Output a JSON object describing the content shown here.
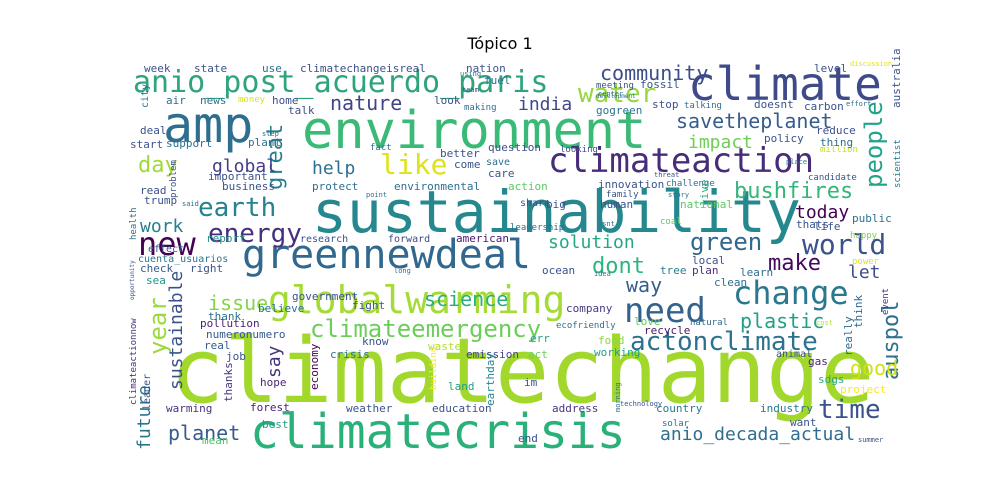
{
  "title": "Tópico 1",
  "words": [
    {
      "t": "climatechange",
      "c": "#a2d82c"
    },
    {
      "t": "sustainability",
      "c": "#25888e"
    },
    {
      "t": "climatecrisis",
      "c": "#2ab17a"
    },
    {
      "t": "environment",
      "c": "#3aba76"
    },
    {
      "t": "globalwarming",
      "c": "#a5db36"
    },
    {
      "t": "climate",
      "c": "#3e4a89"
    },
    {
      "t": "greennewdeal",
      "c": "#31688e"
    },
    {
      "t": "climateaction",
      "c": "#472c7a"
    },
    {
      "t": "amp",
      "c": "#2d6f8e"
    },
    {
      "t": "anio_post_acuerdo_paris",
      "c": "#2ea47c"
    },
    {
      "t": "need",
      "c": "#33628d"
    },
    {
      "t": "change",
      "c": "#2a788e"
    },
    {
      "t": "new",
      "c": "#440154"
    },
    {
      "t": "world",
      "c": "#3b528b"
    },
    {
      "t": "like",
      "c": "#dde318"
    },
    {
      "t": "earth",
      "c": "#26828e"
    },
    {
      "t": "energy",
      "c": "#46307e"
    },
    {
      "t": "actonclimate",
      "c": "#2c728e"
    },
    {
      "t": "climateemergency",
      "c": "#6ccd5a"
    },
    {
      "t": "water",
      "c": "#95d840"
    },
    {
      "t": "people",
      "c": "#20a386"
    },
    {
      "t": "time",
      "c": "#3b528b"
    },
    {
      "t": "year",
      "c": "#9bd93c"
    },
    {
      "t": "great",
      "c": "#277f8e"
    },
    {
      "t": "day",
      "c": "#a0da39"
    },
    {
      "t": "savetheplanet",
      "c": "#365c8d"
    },
    {
      "t": "community",
      "c": "#3d4d8a"
    },
    {
      "t": "nature",
      "c": "#414487"
    },
    {
      "t": "india",
      "c": "#3f4889"
    },
    {
      "t": "impact",
      "c": "#6ece58"
    },
    {
      "t": "global",
      "c": "#433e85"
    },
    {
      "t": "help",
      "c": "#2d708e"
    },
    {
      "t": "bushfires",
      "c": "#32b67a"
    },
    {
      "t": "work",
      "c": "#287d8e"
    },
    {
      "t": "solution",
      "c": "#22a884"
    },
    {
      "t": "green",
      "c": "#31688e"
    },
    {
      "t": "today",
      "c": "#440154"
    },
    {
      "t": "dont",
      "c": "#2fb47c"
    },
    {
      "t": "make",
      "c": "#46085c"
    },
    {
      "t": "way",
      "c": "#365d8d"
    },
    {
      "t": "let",
      "c": "#3c4f8a"
    },
    {
      "t": "science",
      "c": "#29af7f"
    },
    {
      "t": "sustainable",
      "c": "#3b518b"
    },
    {
      "t": "issue",
      "c": "#86d549"
    },
    {
      "t": "plastic",
      "c": "#1fa188"
    },
    {
      "t": "auspol",
      "c": "#2c718e"
    },
    {
      "t": "good",
      "c": "#d0e11c"
    },
    {
      "t": "future",
      "c": "#2c738e"
    },
    {
      "t": "say",
      "c": "#46337f"
    },
    {
      "t": "planet",
      "c": "#365c8d"
    },
    {
      "t": "anio_decada_actual",
      "c": "#2e6e8e"
    },
    {
      "t": "crisis",
      "c": "#2c728e"
    },
    {
      "t": "waste",
      "c": "#b5de2b"
    },
    {
      "t": "emission",
      "c": "#404588"
    },
    {
      "t": "act",
      "c": "#6ccd5a"
    },
    {
      "t": "food",
      "c": "#90d743"
    },
    {
      "t": "gas",
      "c": "#482677"
    },
    {
      "t": "sdgs",
      "c": "#22a785"
    },
    {
      "t": "project",
      "c": "#fde725"
    },
    {
      "t": "weather",
      "c": "#39568c"
    },
    {
      "t": "education",
      "c": "#3b518b"
    },
    {
      "t": "address",
      "c": "#453781"
    },
    {
      "t": "country",
      "c": "#29798e"
    },
    {
      "t": "industry",
      "c": "#2a768e"
    },
    {
      "t": "want",
      "c": "#3b528b"
    },
    {
      "t": "best",
      "c": "#1e9b8a"
    },
    {
      "t": "end",
      "c": "#3b528b"
    },
    {
      "t": "solar",
      "c": "#2d708e"
    },
    {
      "t": "forest",
      "c": "#482475"
    },
    {
      "t": "hope",
      "c": "#482878"
    },
    {
      "t": "job",
      "c": "#3b528b"
    },
    {
      "t": "thanks",
      "c": "#46327e"
    },
    {
      "t": "leader",
      "c": "#3b528b"
    },
    {
      "t": "warming",
      "c": "#46327e"
    },
    {
      "t": "mean",
      "c": "#4ac16d"
    },
    {
      "t": "economy",
      "c": "#440154"
    },
    {
      "t": "building",
      "c": "#fde725"
    },
    {
      "t": "land",
      "c": "#1f9e89"
    },
    {
      "t": "im",
      "c": "#3b528b"
    },
    {
      "t": "earthday",
      "c": "#25838e"
    },
    {
      "t": "know",
      "c": "#39558c"
    },
    {
      "t": "err",
      "c": "#20a386"
    },
    {
      "t": "working",
      "c": "#1fa187"
    },
    {
      "t": "animal",
      "c": "#3b528b"
    },
    {
      "t": "recycle",
      "c": "#481769"
    },
    {
      "t": "real",
      "c": "#365c8d"
    },
    {
      "t": "pollution",
      "c": "#481f70"
    },
    {
      "t": "numeronumero",
      "c": "#38598c"
    },
    {
      "t": "thank",
      "c": "#2d708e"
    },
    {
      "t": "fight",
      "c": "#3b528b"
    },
    {
      "t": "company",
      "c": "#443b84"
    },
    {
      "t": "love",
      "c": "#63cb5f"
    },
    {
      "t": "natural",
      "c": "#31688e"
    },
    {
      "t": "ecofriendly",
      "c": "#2d708e"
    },
    {
      "t": "think",
      "c": "#31688e"
    },
    {
      "t": "really",
      "c": "#31688e"
    },
    {
      "t": "cost",
      "c": "#b8de29"
    },
    {
      "t": "event",
      "c": "#453581"
    },
    {
      "t": "believe",
      "c": "#2d708e"
    },
    {
      "t": "government",
      "c": "#3b528b"
    },
    {
      "t": "sea",
      "c": "#20928c"
    },
    {
      "t": "check",
      "c": "#365c8d"
    },
    {
      "t": "right",
      "c": "#3b528b"
    },
    {
      "t": "cuenta_usuarios",
      "c": "#2a788e"
    },
    {
      "t": "report",
      "c": "#1f968b"
    },
    {
      "t": "effect",
      "c": "#39568c"
    },
    {
      "t": "health",
      "c": "#2d708e"
    },
    {
      "t": "climateactionnow",
      "c": "#46307e"
    },
    {
      "t": "research",
      "c": "#3b528b"
    },
    {
      "t": "forward",
      "c": "#3e4989"
    },
    {
      "t": "american",
      "c": "#481a6c"
    },
    {
      "t": "leadership",
      "c": "#2d708e"
    },
    {
      "t": "ocean",
      "c": "#3b528b"
    },
    {
      "t": "tree",
      "c": "#287d8e"
    },
    {
      "t": "plan",
      "c": "#46327e"
    },
    {
      "t": "local",
      "c": "#3b528b"
    },
    {
      "t": "clean",
      "c": "#2d708e"
    },
    {
      "t": "learn",
      "c": "#2d708e"
    },
    {
      "t": "thats",
      "c": "#3b528b"
    },
    {
      "t": "life",
      "c": "#3b528b"
    },
    {
      "t": "public",
      "c": "#2d708e"
    },
    {
      "t": "happy",
      "c": "#7ad151"
    },
    {
      "t": "power",
      "c": "#dde318"
    },
    {
      "t": "share",
      "c": "#3b528b"
    },
    {
      "t": "big",
      "c": "#3b528b"
    },
    {
      "t": "human",
      "c": "#3b528b"
    },
    {
      "t": "national",
      "c": "#5ec962"
    },
    {
      "t": "scientist",
      "c": "#2a788e"
    },
    {
      "t": "australia",
      "c": "#3b528b"
    },
    {
      "t": "candidate",
      "c": "#3b528b"
    },
    {
      "t": "million",
      "c": "#c2df23"
    },
    {
      "t": "place",
      "c": "#2d708e"
    },
    {
      "t": "threat",
      "c": "#3b528b"
    },
    {
      "t": "story",
      "c": "#2d708e"
    },
    {
      "t": "live",
      "c": "#29af7f"
    },
    {
      "t": "isnt",
      "c": "#2d708e"
    },
    {
      "t": "coal",
      "c": "#5ec962"
    },
    {
      "t": "family",
      "c": "#3b528b"
    },
    {
      "t": "innovation",
      "c": "#3b528b"
    },
    {
      "t": "challenge",
      "c": "#2d708e"
    },
    {
      "t": "action",
      "c": "#5ec962"
    },
    {
      "t": "environmental",
      "c": "#2d708e"
    },
    {
      "t": "care",
      "c": "#3b528b"
    },
    {
      "t": "protect",
      "c": "#2d708e"
    },
    {
      "t": "business",
      "c": "#3b528b"
    },
    {
      "t": "important",
      "c": "#3b528b"
    },
    {
      "t": "problem",
      "c": "#3b528b"
    },
    {
      "t": "trump",
      "c": "#3b528b"
    },
    {
      "t": "read",
      "c": "#3b528b"
    },
    {
      "t": "said",
      "c": "#2d708e"
    },
    {
      "t": "start",
      "c": "#3b528b"
    },
    {
      "t": "support",
      "c": "#2d708e"
    },
    {
      "t": "plant",
      "c": "#2d708e"
    },
    {
      "t": "deal",
      "c": "#3b528b"
    },
    {
      "t": "step",
      "c": "#2d708e"
    },
    {
      "t": "city",
      "c": "#2d708e"
    },
    {
      "t": "air",
      "c": "#2d708e"
    },
    {
      "t": "news",
      "c": "#2d708e"
    },
    {
      "t": "money",
      "c": "#dde318"
    },
    {
      "t": "home",
      "c": "#3b528b"
    },
    {
      "t": "talk",
      "c": "#3b528b"
    },
    {
      "t": "use",
      "c": "#2d708e"
    },
    {
      "t": "week",
      "c": "#3b528b"
    },
    {
      "t": "state",
      "c": "#3b528b"
    },
    {
      "t": "climatechangeisreal",
      "c": "#3b528b"
    },
    {
      "t": "nation",
      "c": "#3b528b"
    },
    {
      "t": "fuel",
      "c": "#2d708e"
    },
    {
      "t": "team",
      "c": "#3b528b"
    },
    {
      "t": "using",
      "c": "#2d708e"
    },
    {
      "t": "meeting",
      "c": "#3b528b"
    },
    {
      "t": "fossil",
      "c": "#3b528b"
    },
    {
      "t": "center",
      "c": "#2d708e"
    },
    {
      "t": "discussion",
      "c": "#dde318"
    },
    {
      "t": "level",
      "c": "#3b528b"
    },
    {
      "t": "gogreen",
      "c": "#2d708e"
    },
    {
      "t": "stop",
      "c": "#3b528b"
    },
    {
      "t": "talking",
      "c": "#2d708e"
    },
    {
      "t": "doesnt",
      "c": "#3b528b"
    },
    {
      "t": "carbon",
      "c": "#3b528b"
    },
    {
      "t": "effort",
      "c": "#2d708e"
    },
    {
      "t": "policy",
      "c": "#3b528b"
    },
    {
      "t": "reduce",
      "c": "#3b528b"
    },
    {
      "t": "thing",
      "c": "#2d708e"
    },
    {
      "t": "look",
      "c": "#3b528b"
    },
    {
      "t": "making",
      "c": "#2d708e"
    },
    {
      "t": "better",
      "c": "#3b528b"
    },
    {
      "t": "question",
      "c": "#3b528b"
    },
    {
      "t": "fact",
      "c": "#2d708e"
    },
    {
      "t": "looking",
      "c": "#3b528b"
    },
    {
      "t": "come",
      "c": "#3b528b"
    },
    {
      "t": "save",
      "c": "#2d708e"
    },
    {
      "t": "point",
      "c": "#2d708e"
    },
    {
      "t": "long",
      "c": "#2d708e"
    },
    {
      "t": "idea",
      "c": "#2d708e"
    },
    {
      "t": "technology",
      "c": "#3b528b"
    },
    {
      "t": "morning",
      "c": "#2d708e"
    },
    {
      "t": "summer",
      "c": "#3b528b"
    },
    {
      "t": "development",
      "c": "#2d708e"
    },
    {
      "t": "opportunity",
      "c": "#3b528b"
    }
  ]
}
